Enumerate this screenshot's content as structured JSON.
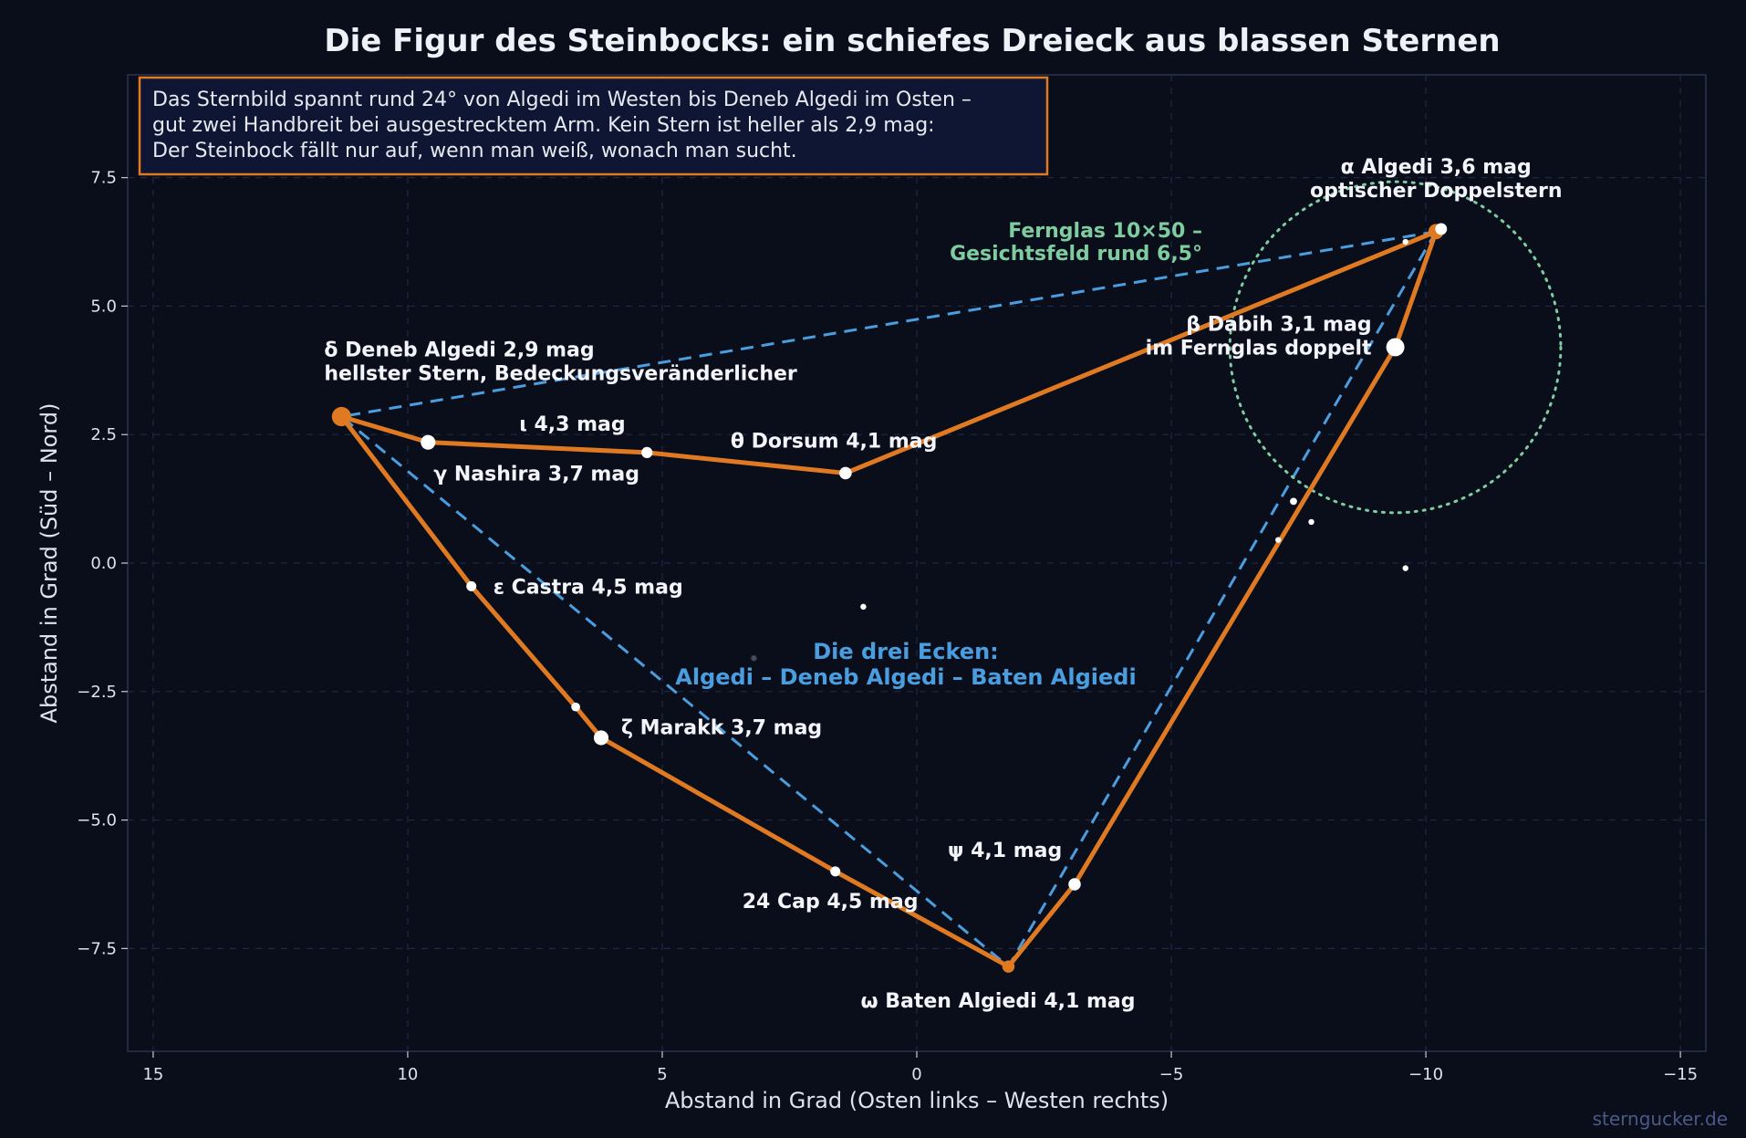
{
  "chart_data": {
    "type": "scatter",
    "title": "Die Figur des Steinbocks: ein schiefes Dreieck aus blassen Sternen",
    "xlabel": "Abstand in Grad  (Osten links – Westen rechts)",
    "ylabel": "Abstand in Grad  (Süd – Nord)",
    "xlim": [
      15.5,
      -15.5
    ],
    "ylim": [
      -9.5,
      9.5
    ],
    "x_ticks": [
      15,
      10,
      5,
      0,
      -5,
      -10,
      -15
    ],
    "x_tick_labels": [
      "15",
      "10",
      "5",
      "0",
      "−5",
      "−10",
      "−15"
    ],
    "y_ticks": [
      7.5,
      5.0,
      2.5,
      0.0,
      -2.5,
      -5.0,
      -7.5
    ],
    "y_tick_labels": [
      "7.5",
      "5.0",
      "2.5",
      "0.0",
      "−2.5",
      "−5.0",
      "−7.5"
    ],
    "grid": true,
    "stars": [
      {
        "id": "alpha",
        "x": -10.2,
        "y": 6.45,
        "mag": 3.6,
        "color": "#e07a22",
        "label_lines": [
          "α  Algedi  3,6 mag",
          "optischer Doppelstern"
        ]
      },
      {
        "id": "alpha2",
        "x": -10.3,
        "y": 6.5,
        "mag": 4.2,
        "color": "#ffffff",
        "label_lines": []
      },
      {
        "id": "beta",
        "x": -9.4,
        "y": 4.2,
        "mag": 3.1,
        "color": "#ffffff",
        "label_lines": [
          "β  Dabih  3,1 mag",
          "im Fernglas doppelt"
        ]
      },
      {
        "id": "delta",
        "x": 11.3,
        "y": 2.85,
        "mag": 2.9,
        "color": "#e07a22",
        "label_lines": [
          "δ  Deneb Algedi  2,9 mag",
          "hellster Stern, Bedeckungsveränderlicher"
        ]
      },
      {
        "id": "gamma",
        "x": 9.6,
        "y": 2.35,
        "mag": 3.7,
        "color": "#ffffff",
        "label_lines": [
          "γ  Nashira  3,7 mag"
        ]
      },
      {
        "id": "iota",
        "x": 5.3,
        "y": 2.15,
        "mag": 4.3,
        "color": "#ffffff",
        "label_lines": [
          "ι  4,3 mag"
        ]
      },
      {
        "id": "theta",
        "x": 1.4,
        "y": 1.75,
        "mag": 4.1,
        "color": "#ffffff",
        "label_lines": [
          "θ  Dorsum  4,1 mag"
        ]
      },
      {
        "id": "epsilon",
        "x": 8.75,
        "y": -0.45,
        "mag": 4.5,
        "color": "#ffffff",
        "label_lines": [
          "ε  Castra  4,5 mag"
        ]
      },
      {
        "id": "kappa",
        "x": 6.7,
        "y": -2.8,
        "mag": 4.7,
        "color": "#ffffff",
        "label_lines": []
      },
      {
        "id": "zeta",
        "x": 6.2,
        "y": -3.4,
        "mag": 3.7,
        "color": "#ffffff",
        "label_lines": [
          "ζ  Marakk  3,7 mag"
        ]
      },
      {
        "id": "cap24",
        "x": 1.6,
        "y": -6.0,
        "mag": 4.5,
        "color": "#ffffff",
        "label_lines": [
          "24 Cap  4,5 mag"
        ]
      },
      {
        "id": "omega",
        "x": -1.8,
        "y": -7.85,
        "mag": 4.1,
        "color": "#e07a22",
        "label_lines": [
          "ω  Baten Algiedi  4,1 mag"
        ]
      },
      {
        "id": "psi",
        "x": -3.1,
        "y": -6.25,
        "mag": 4.1,
        "color": "#ffffff",
        "label_lines": [
          "ψ  4,1 mag"
        ]
      },
      {
        "id": "f1",
        "x": -7.4,
        "y": 1.2,
        "mag": 5.0,
        "color": "#ffffff",
        "label_lines": []
      },
      {
        "id": "f2",
        "x": -7.75,
        "y": 0.8,
        "mag": 5.5,
        "color": "#ffffff",
        "label_lines": []
      },
      {
        "id": "f3",
        "x": -7.1,
        "y": 0.45,
        "mag": 5.7,
        "color": "#ffffff",
        "label_lines": []
      },
      {
        "id": "f4",
        "x": -9.6,
        "y": -0.1,
        "mag": 5.6,
        "color": "#ffffff",
        "label_lines": []
      },
      {
        "id": "f5",
        "x": 1.05,
        "y": -0.85,
        "mag": 5.2,
        "color": "#ffffff",
        "label_lines": []
      },
      {
        "id": "f6",
        "x": 3.2,
        "y": -1.85,
        "mag": 6.2,
        "color": "#444a5a",
        "label_lines": []
      },
      {
        "id": "f7",
        "x": -9.6,
        "y": 6.25,
        "mag": 5.5,
        "color": "#ffffff",
        "label_lines": []
      }
    ],
    "figure_line": {
      "color": "#e07a22",
      "points": [
        [
          -10.2,
          6.45
        ],
        [
          1.4,
          1.75
        ],
        [
          5.3,
          2.15
        ],
        [
          9.6,
          2.35
        ],
        [
          11.3,
          2.85
        ],
        [
          8.75,
          -0.45
        ],
        [
          6.7,
          -2.8
        ],
        [
          6.2,
          -3.4
        ],
        [
          1.6,
          -6.0
        ],
        [
          -1.8,
          -7.85
        ],
        [
          -3.1,
          -6.25
        ],
        [
          -9.4,
          4.2
        ],
        [
          -10.2,
          6.45
        ]
      ]
    },
    "triangle": {
      "color": "#4a9ee0",
      "points": [
        [
          -10.2,
          6.45
        ],
        [
          11.3,
          2.85
        ],
        [
          -1.8,
          -7.85
        ],
        [
          -10.2,
          6.45
        ]
      ]
    },
    "binocular_field": {
      "center": [
        -9.4,
        4.2
      ],
      "radius": 3.25,
      "color": "#7fcca0",
      "label_lines": [
        "Fernglas 10×50 –",
        "Gesichtsfeld rund 6,5°"
      ]
    },
    "corner_label": {
      "lines": [
        "Die drei Ecken:",
        "Algedi – Deneb Algedi – Baten Algiedi"
      ]
    },
    "info_box": {
      "lines": [
        "Das Sternbild spannt rund 24° von Algedi im Westen bis Deneb Algedi im Osten –",
        "gut zwei Handbreit bei ausgestrecktem Arm. Kein Stern ist heller als 2,9 mag:",
        "Der Steinbock fällt nur auf, wenn man weiß, wonach man sucht."
      ]
    },
    "credit": "sterngucker.de"
  }
}
